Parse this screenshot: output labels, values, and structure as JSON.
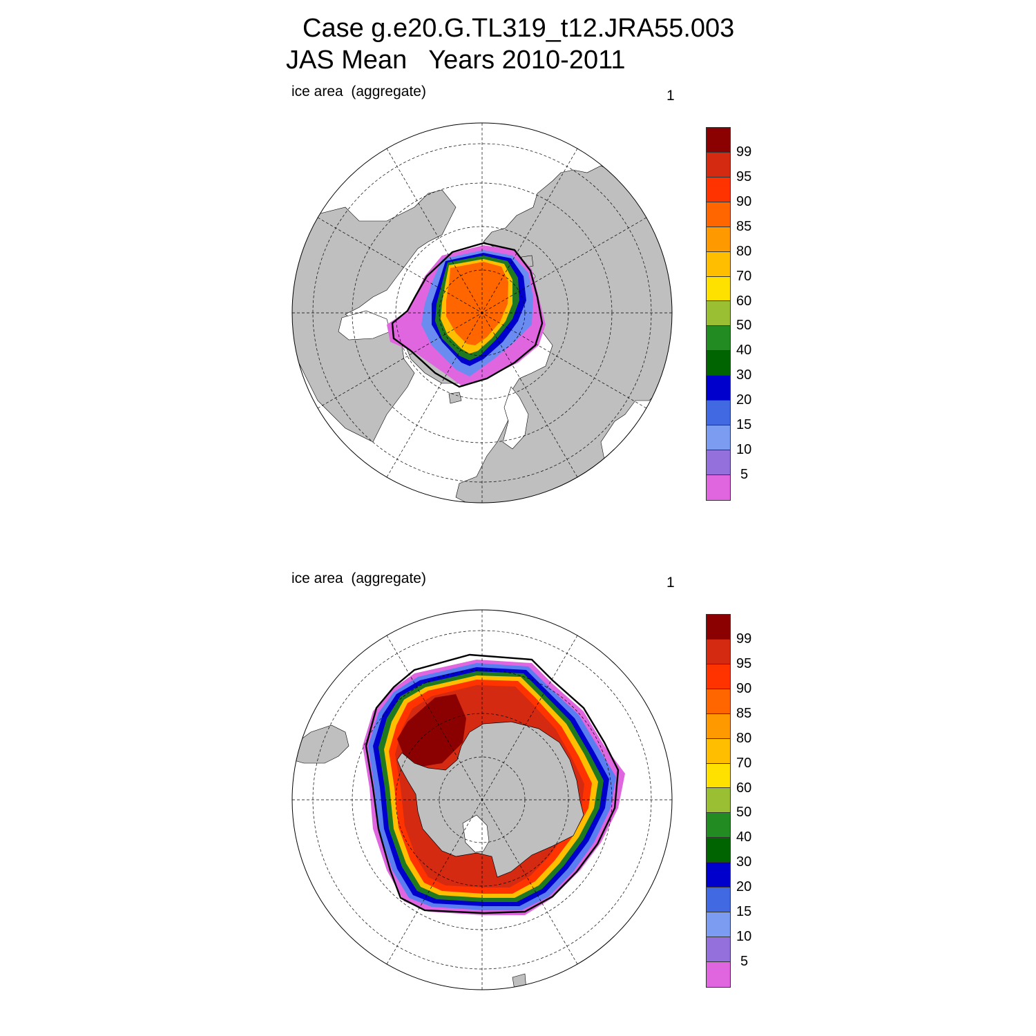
{
  "title": {
    "line1": "Case g.e20.G.TL319_t12.JRA55.003",
    "line2": "JAS Mean   Years 2010-2011"
  },
  "panels": [
    {
      "label": "ice area  (aggregate)",
      "number": "1",
      "hemisphere": "north"
    },
    {
      "label": "ice area  (aggregate)",
      "number": "1",
      "hemisphere": "south"
    }
  ],
  "colorbar": {
    "labels": [
      "99",
      "95",
      "90",
      "85",
      "80",
      "70",
      "60",
      "50",
      "40",
      "30",
      "20",
      "15",
      "10",
      "5"
    ],
    "colors": [
      "#8b0000",
      "#d42a12",
      "#ff3300",
      "#ff6600",
      "#ff9900",
      "#ffbf00",
      "#ffe100",
      "#9bbf33",
      "#228b22",
      "#006400",
      "#0000cd",
      "#4169e1",
      "#7b9cf0",
      "#9370db",
      "#e066e0"
    ]
  },
  "colors": {
    "land": "#bfbfbf",
    "ocean": "#ffffff",
    "observed_edge": "#000000"
  }
}
